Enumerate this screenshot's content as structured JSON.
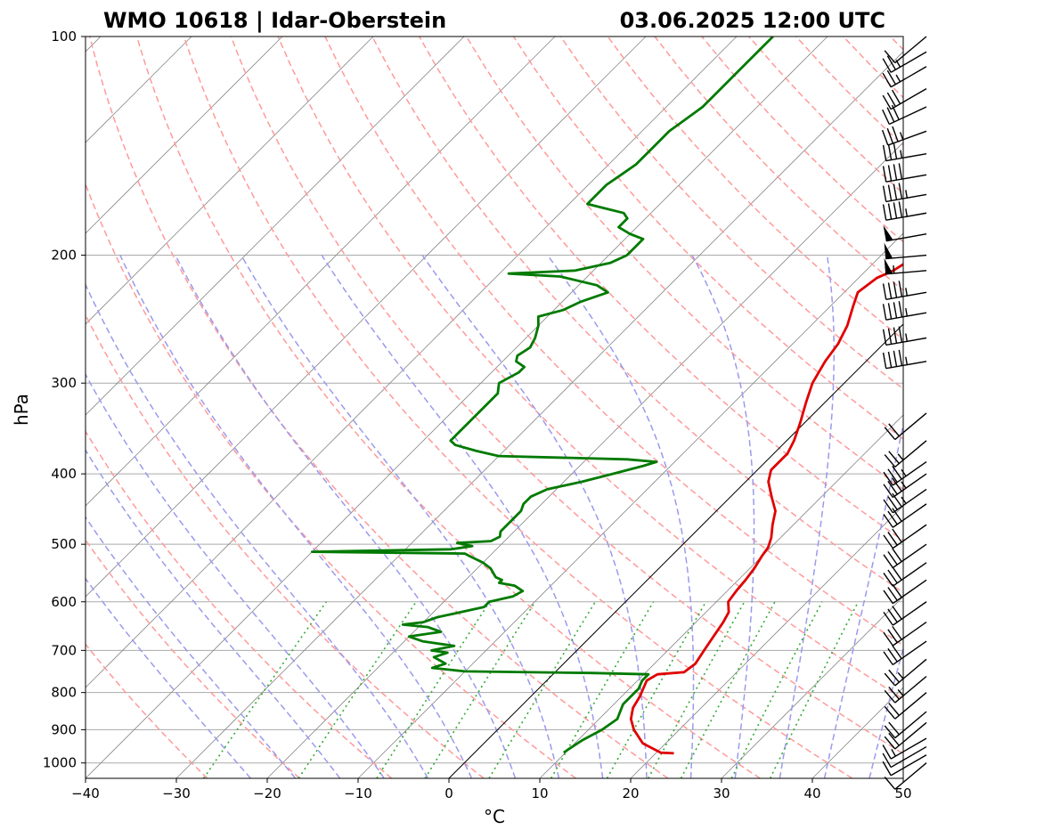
{
  "chart_data": {
    "type": "line",
    "subtype": "skew-T log-p diagram",
    "title_left": "WMO 10618 | Idar-Oberstein",
    "title_right": "03.06.2025 12:00 UTC",
    "xlabel": "°C",
    "ylabel": "hPa",
    "xlim": [
      -40,
      50
    ],
    "ylim": [
      1050,
      100
    ],
    "y_scale": "log",
    "grid": true,
    "x_ticks": [
      -40,
      -30,
      -20,
      -10,
      0,
      10,
      20,
      30,
      40,
      50
    ],
    "x_tick_labels": [
      "−40",
      "−30",
      "−20",
      "−10",
      "0",
      "10",
      "20",
      "30",
      "40",
      "50"
    ],
    "y_ticks": [
      1000,
      900,
      800,
      700,
      600,
      500,
      400,
      300,
      200,
      100
    ],
    "y_tick_labels": [
      "1000",
      "900",
      "800",
      "700",
      "600",
      "500",
      "400",
      "300",
      "200",
      "100"
    ],
    "colors": {
      "temperature": "#e00000",
      "dewpoint": "#007a00",
      "dry_adiabat": "#ff9a9a",
      "moist_adiabat": "#9a9aee",
      "mixing_ratio": "#33aa33",
      "isotherm": "#888888",
      "zero_isotherm": "#000000",
      "grid": "#aaaaaa"
    },
    "series": [
      {
        "name": "temperature",
        "points": [
          [
            22.0,
            970
          ],
          [
            20.5,
            968
          ],
          [
            17.5,
            940
          ],
          [
            15.0,
            900
          ],
          [
            13.5,
            870
          ],
          [
            12.5,
            840
          ],
          [
            12.0,
            810
          ],
          [
            11.0,
            770
          ],
          [
            11.5,
            755
          ],
          [
            14.2,
            750
          ],
          [
            14.5,
            730
          ],
          [
            14.0,
            700
          ],
          [
            13.5,
            670
          ],
          [
            13.0,
            640
          ],
          [
            12.5,
            620
          ],
          [
            11.3,
            600
          ],
          [
            11.0,
            580
          ],
          [
            10.8,
            560
          ],
          [
            10.5,
            540
          ],
          [
            10.0,
            520
          ],
          [
            9.7,
            505
          ],
          [
            9.0,
            490
          ],
          [
            7.7,
            470
          ],
          [
            6.5,
            450
          ],
          [
            4.5,
            430
          ],
          [
            2.5,
            410
          ],
          [
            1.5,
            395
          ],
          [
            1.5,
            385
          ],
          [
            1.5,
            375
          ],
          [
            0.8,
            360
          ],
          [
            -0.5,
            340
          ],
          [
            -2.0,
            320
          ],
          [
            -3.5,
            300
          ],
          [
            -4.5,
            280
          ],
          [
            -5.0,
            265
          ],
          [
            -6.0,
            250
          ],
          [
            -7.5,
            235
          ],
          [
            -8.5,
            225
          ],
          [
            -8.0,
            215
          ],
          [
            -7.0,
            210
          ],
          [
            -6.5,
            205
          ],
          [
            -6.5,
            200
          ],
          [
            -6.3,
            195
          ],
          [
            -6.3,
            190
          ],
          [
            -6.2,
            183
          ],
          [
            -6.0,
            175
          ],
          [
            -7.0,
            165
          ],
          [
            -7.3,
            158
          ],
          [
            -7.5,
            150
          ],
          [
            -8.0,
            143
          ],
          [
            -8.5,
            135
          ],
          [
            -9.0,
            128
          ],
          [
            -10.0,
            122
          ],
          [
            -11.0,
            115
          ],
          [
            -11.5,
            110
          ],
          [
            -12.5,
            105
          ],
          [
            -13.5,
            100
          ]
        ]
      },
      {
        "name": "dewpoint",
        "points": [
          [
            9.8,
            968
          ],
          [
            10.0,
            955
          ],
          [
            10.5,
            930
          ],
          [
            11.5,
            900
          ],
          [
            12.0,
            870
          ],
          [
            11.5,
            850
          ],
          [
            11.0,
            830
          ],
          [
            11.0,
            810
          ],
          [
            11.0,
            790
          ],
          [
            10.5,
            770
          ],
          [
            10.5,
            755
          ],
          [
            4.0,
            752
          ],
          [
            -10.0,
            748
          ],
          [
            -14.0,
            740
          ],
          [
            -13.0,
            730
          ],
          [
            -15.0,
            715
          ],
          [
            -14.0,
            705
          ],
          [
            -16.0,
            700
          ],
          [
            -14.0,
            690
          ],
          [
            -18.0,
            680
          ],
          [
            -20.0,
            670
          ],
          [
            -17.0,
            660
          ],
          [
            -19.0,
            650
          ],
          [
            -22.0,
            645
          ],
          [
            -20.0,
            640
          ],
          [
            -19.0,
            630
          ],
          [
            -17.0,
            620
          ],
          [
            -15.0,
            610
          ],
          [
            -15.0,
            600
          ],
          [
            -13.0,
            590
          ],
          [
            -12.5,
            580
          ],
          [
            -14.0,
            570
          ],
          [
            -16.0,
            565
          ],
          [
            -16.0,
            560
          ],
          [
            -17.0,
            555
          ],
          [
            -17.5,
            550
          ],
          [
            -18.5,
            540
          ],
          [
            -20.0,
            530
          ],
          [
            -22.0,
            520
          ],
          [
            -23.0,
            515
          ],
          [
            -40.0,
            512
          ],
          [
            -25.0,
            508
          ],
          [
            -23.0,
            503
          ],
          [
            -25.0,
            498
          ],
          [
            -21.5,
            495
          ],
          [
            -21.0,
            488
          ],
          [
            -21.5,
            480
          ],
          [
            -21.5,
            470
          ],
          [
            -21.5,
            460
          ],
          [
            -21.5,
            450
          ],
          [
            -22.0,
            440
          ],
          [
            -22.0,
            430
          ],
          [
            -21.0,
            420
          ],
          [
            -18.0,
            410
          ],
          [
            -15.5,
            400
          ],
          [
            -13.0,
            390
          ],
          [
            -12.0,
            385
          ],
          [
            -15.5,
            382
          ],
          [
            -30.0,
            378
          ],
          [
            -33.0,
            372
          ],
          [
            -36.0,
            365
          ],
          [
            -37.0,
            360
          ],
          [
            -37.0,
            350
          ],
          [
            -37.0,
            340
          ],
          [
            -37.0,
            330
          ],
          [
            -37.0,
            320
          ],
          [
            -37.0,
            310
          ],
          [
            -38.0,
            300
          ],
          [
            -37.0,
            290
          ],
          [
            -37.0,
            285
          ],
          [
            -38.5,
            280
          ],
          [
            -39.0,
            275
          ],
          [
            -38.5,
            268
          ],
          [
            -39.0,
            260
          ],
          [
            -40.0,
            250
          ],
          [
            -41.0,
            243
          ],
          [
            -39.0,
            238
          ],
          [
            -38.0,
            232
          ],
          [
            -36.0,
            225
          ],
          [
            -38.0,
            220
          ],
          [
            -43.0,
            214
          ],
          [
            -49.0,
            212
          ],
          [
            -42.0,
            210
          ],
          [
            -39.0,
            205
          ],
          [
            -38.0,
            200
          ],
          [
            -38.0,
            195
          ],
          [
            -38.0,
            190
          ],
          [
            -40.0,
            187
          ],
          [
            -42.0,
            183
          ],
          [
            -42.0,
            178
          ],
          [
            -43.0,
            175
          ],
          [
            -46.0,
            172
          ],
          [
            -48.0,
            170
          ],
          [
            -48.0,
            165
          ],
          [
            -48.0,
            160
          ],
          [
            -47.5,
            155
          ],
          [
            -47.0,
            150
          ],
          [
            -47.0,
            145
          ],
          [
            -47.0,
            140
          ],
          [
            -47.0,
            135
          ],
          [
            -46.5,
            130
          ],
          [
            -46.0,
            125
          ],
          [
            -46.0,
            120
          ],
          [
            -46.0,
            115
          ],
          [
            -46.0,
            110
          ],
          [
            -46.0,
            105
          ],
          [
            -46.0,
            100
          ]
        ]
      }
    ],
    "wind_barbs": [
      {
        "p": 1000,
        "speed_kt": 10,
        "dir_deg": 230
      },
      {
        "p": 975,
        "speed_kt": 10,
        "dir_deg": 240
      },
      {
        "p": 950,
        "speed_kt": 10,
        "dir_deg": 240
      },
      {
        "p": 925,
        "speed_kt": 15,
        "dir_deg": 240
      },
      {
        "p": 880,
        "speed_kt": 20,
        "dir_deg": 230
      },
      {
        "p": 850,
        "speed_kt": 20,
        "dir_deg": 230
      },
      {
        "p": 800,
        "speed_kt": 20,
        "dir_deg": 230
      },
      {
        "p": 760,
        "speed_kt": 25,
        "dir_deg": 230
      },
      {
        "p": 720,
        "speed_kt": 25,
        "dir_deg": 230
      },
      {
        "p": 680,
        "speed_kt": 30,
        "dir_deg": 235
      },
      {
        "p": 640,
        "speed_kt": 30,
        "dir_deg": 235
      },
      {
        "p": 600,
        "speed_kt": 30,
        "dir_deg": 235
      },
      {
        "p": 560,
        "speed_kt": 30,
        "dir_deg": 235
      },
      {
        "p": 530,
        "speed_kt": 30,
        "dir_deg": 235
      },
      {
        "p": 500,
        "speed_kt": 30,
        "dir_deg": 235
      },
      {
        "p": 470,
        "speed_kt": 30,
        "dir_deg": 235
      },
      {
        "p": 440,
        "speed_kt": 30,
        "dir_deg": 235
      },
      {
        "p": 420,
        "speed_kt": 35,
        "dir_deg": 235
      },
      {
        "p": 400,
        "speed_kt": 35,
        "dir_deg": 235
      },
      {
        "p": 385,
        "speed_kt": 35,
        "dir_deg": 235
      },
      {
        "p": 360,
        "speed_kt": 25,
        "dir_deg": 230
      },
      {
        "p": 330,
        "speed_kt": 20,
        "dir_deg": 230
      },
      {
        "p": 280,
        "speed_kt": 45,
        "dir_deg": 260
      },
      {
        "p": 260,
        "speed_kt": 45,
        "dir_deg": 260
      },
      {
        "p": 240,
        "speed_kt": 45,
        "dir_deg": 260
      },
      {
        "p": 225,
        "speed_kt": 45,
        "dir_deg": 260
      },
      {
        "p": 210,
        "speed_kt": 55,
        "dir_deg": 265
      },
      {
        "p": 200,
        "speed_kt": 50,
        "dir_deg": 265
      },
      {
        "p": 187,
        "speed_kt": 50,
        "dir_deg": 260
      },
      {
        "p": 175,
        "speed_kt": 45,
        "dir_deg": 260
      },
      {
        "p": 165,
        "speed_kt": 45,
        "dir_deg": 260
      },
      {
        "p": 155,
        "speed_kt": 40,
        "dir_deg": 260
      },
      {
        "p": 145,
        "speed_kt": 35,
        "dir_deg": 260
      },
      {
        "p": 135,
        "speed_kt": 35,
        "dir_deg": 250
      },
      {
        "p": 125,
        "speed_kt": 30,
        "dir_deg": 245
      },
      {
        "p": 118,
        "speed_kt": 30,
        "dir_deg": 240
      },
      {
        "p": 110,
        "speed_kt": 25,
        "dir_deg": 240
      },
      {
        "p": 105,
        "speed_kt": 25,
        "dir_deg": 240
      },
      {
        "p": 100,
        "speed_kt": 10,
        "dir_deg": 230
      }
    ]
  }
}
